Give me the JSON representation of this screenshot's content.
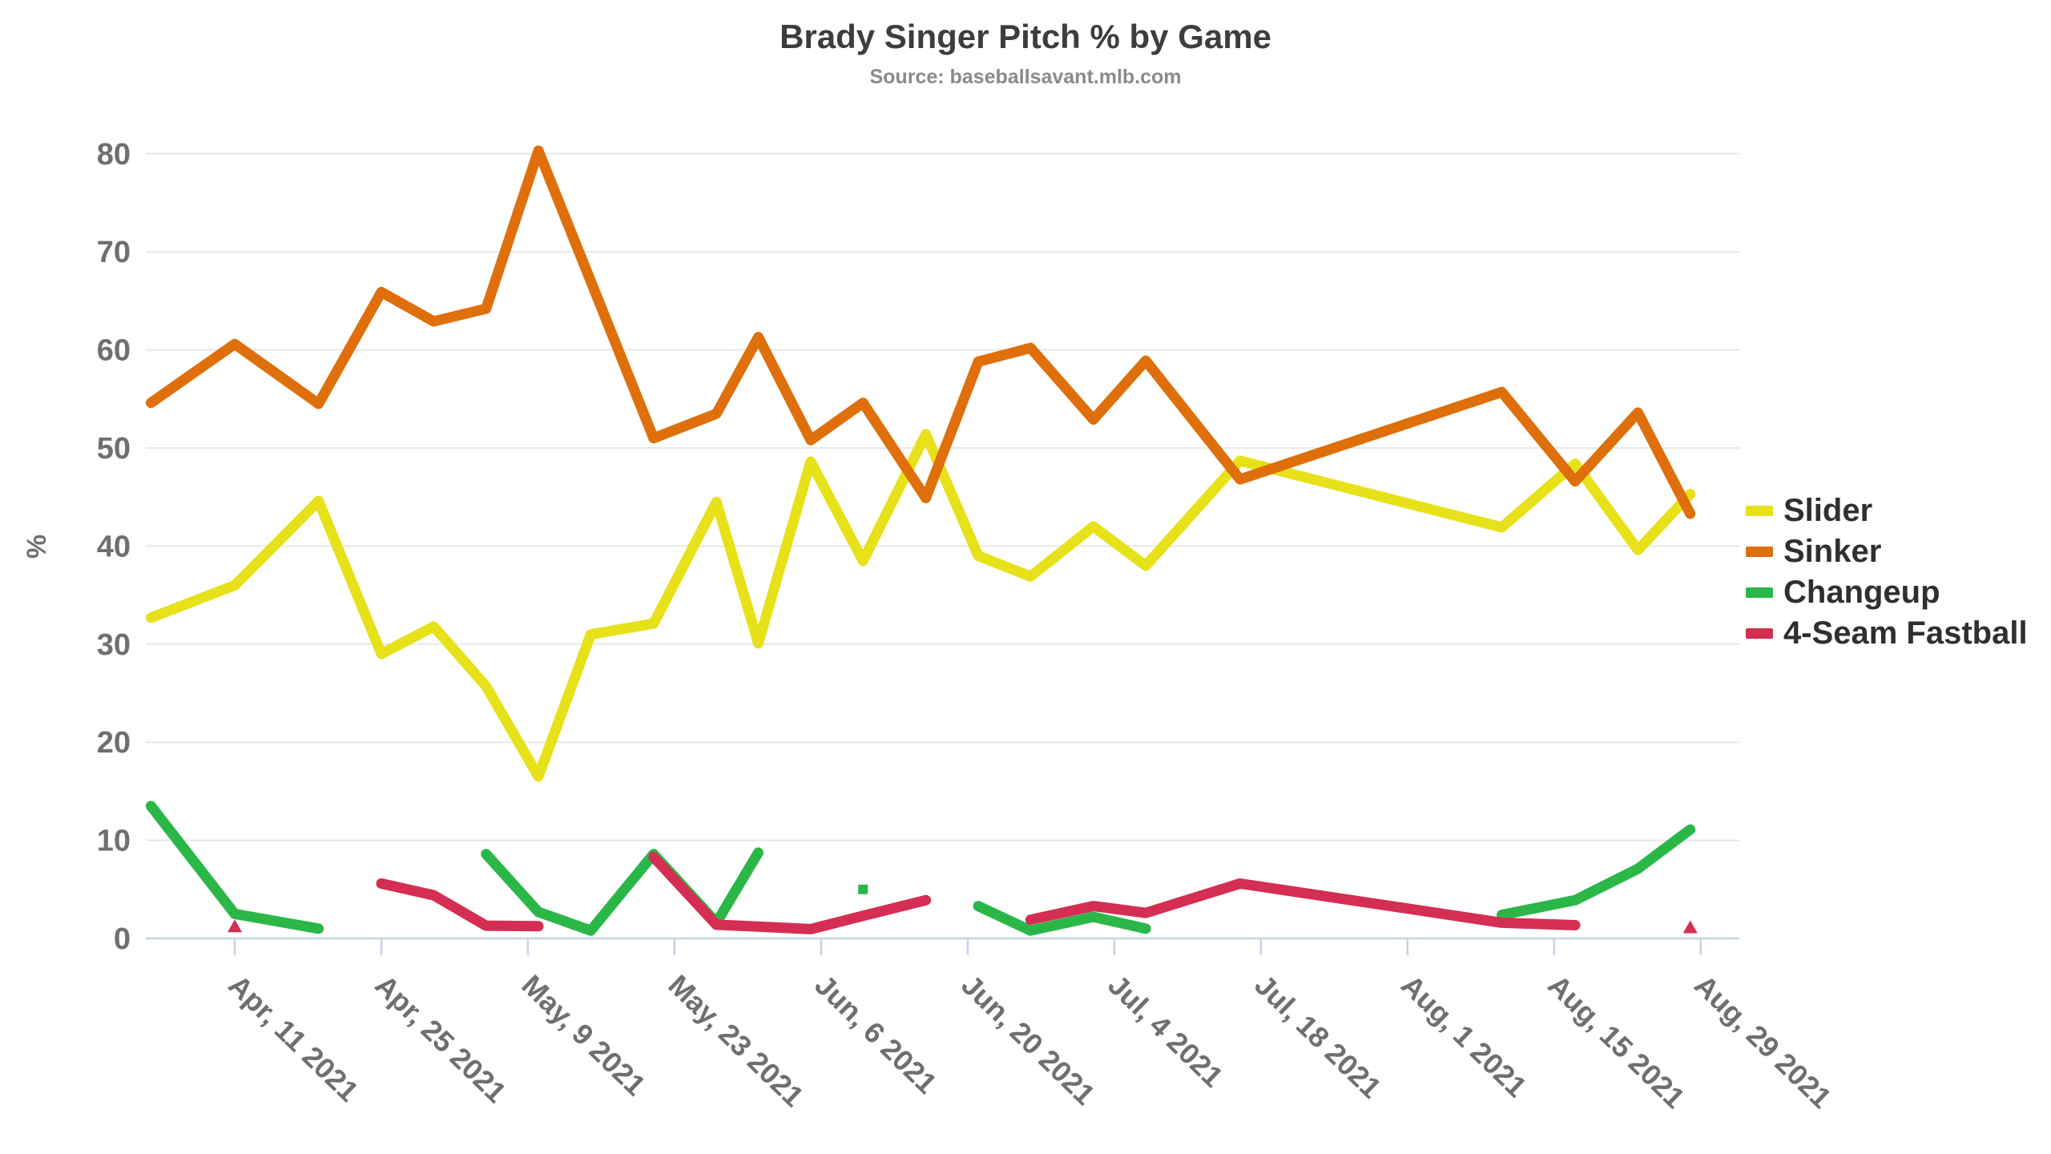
{
  "header": {
    "title": "Brady Singer Pitch % by Game",
    "subtitle": "Source: baseballsavant.mlb.com"
  },
  "chart_data": {
    "type": "line",
    "title": "Brady Singer Pitch % by Game",
    "subtitle": "Source: baseballsavant.mlb.com",
    "xlabel": "",
    "ylabel": "%",
    "ylim": [
      0,
      80
    ],
    "grid": true,
    "legend_position": "right",
    "y_ticks": [
      0,
      10,
      20,
      30,
      40,
      50,
      60,
      70,
      80
    ],
    "x_ticks": [
      {
        "date": "2021-04-11",
        "label": "Apr, 11 2021"
      },
      {
        "date": "2021-04-25",
        "label": "Apr, 25 2021"
      },
      {
        "date": "2021-05-09",
        "label": "May, 9 2021"
      },
      {
        "date": "2021-05-23",
        "label": "May, 23 2021"
      },
      {
        "date": "2021-06-06",
        "label": "Jun, 6 2021"
      },
      {
        "date": "2021-06-20",
        "label": "Jun, 20 2021"
      },
      {
        "date": "2021-07-04",
        "label": "Jul, 4 2021"
      },
      {
        "date": "2021-07-18",
        "label": "Jul, 18 2021"
      },
      {
        "date": "2021-08-01",
        "label": "Aug, 1 2021"
      },
      {
        "date": "2021-08-15",
        "label": "Aug, 15 2021"
      },
      {
        "date": "2021-08-29",
        "label": "Aug, 29 2021"
      }
    ],
    "games": [
      "2021-04-03",
      "2021-04-11",
      "2021-04-19",
      "2021-04-25",
      "2021-04-30",
      "2021-05-05",
      "2021-05-10",
      "2021-05-15",
      "2021-05-21",
      "2021-05-27",
      "2021-05-31",
      "2021-06-05",
      "2021-06-10",
      "2021-06-16",
      "2021-06-21",
      "2021-06-26",
      "2021-07-02",
      "2021-07-07",
      "2021-07-16",
      "2021-08-10",
      "2021-08-17",
      "2021-08-23",
      "2021-08-28"
    ],
    "series": [
      {
        "name": "Slider",
        "color": "#e7e119",
        "marker": "none",
        "values": [
          32.7,
          36.0,
          44.6,
          29.0,
          31.8,
          25.7,
          16.5,
          31.0,
          32.1,
          44.5,
          30.1,
          48.6,
          38.5,
          51.4,
          39.0,
          36.9,
          42.0,
          38.0,
          48.7,
          41.9,
          48.4,
          39.6,
          45.3
        ]
      },
      {
        "name": "Sinker",
        "color": "#df6f0b",
        "marker": "none",
        "values": [
          54.6,
          60.6,
          54.5,
          65.9,
          62.9,
          64.2,
          80.3,
          67.0,
          51.0,
          53.5,
          61.3,
          50.8,
          54.6,
          44.9,
          58.8,
          60.2,
          52.9,
          58.9,
          46.8,
          55.7,
          46.6,
          53.6,
          43.3
        ]
      },
      {
        "name": "Changeup",
        "color": "#2bb747",
        "marker": "square",
        "values": [
          13.5,
          2.5,
          1.0,
          null,
          null,
          8.6,
          2.7,
          0.8,
          8.6,
          1.6,
          8.75,
          null,
          5.0,
          null,
          3.3,
          0.8,
          2.2,
          1.0,
          null,
          2.4,
          3.9,
          7.1,
          11.1
        ]
      },
      {
        "name": "4-Seam Fastball",
        "color": "#d42e52",
        "marker": "triangle-up",
        "values": [
          null,
          1.2,
          null,
          5.6,
          4.4,
          1.3,
          1.25,
          null,
          8.3,
          1.4,
          1.2,
          0.95,
          2.3,
          3.9,
          null,
          1.9,
          3.3,
          2.6,
          5.6,
          1.6,
          1.35,
          null,
          1.1
        ]
      }
    ]
  },
  "style": {
    "gridline_color": "#e8e8e8",
    "axis_line_color": "#c6d2e6",
    "tick_label_color": "#6f6f6f",
    "title_color": "#3d3d3d",
    "subtitle_color": "#8a8a8a",
    "legend_text_color": "#2f2f2f",
    "background_color": "#ffffff"
  }
}
